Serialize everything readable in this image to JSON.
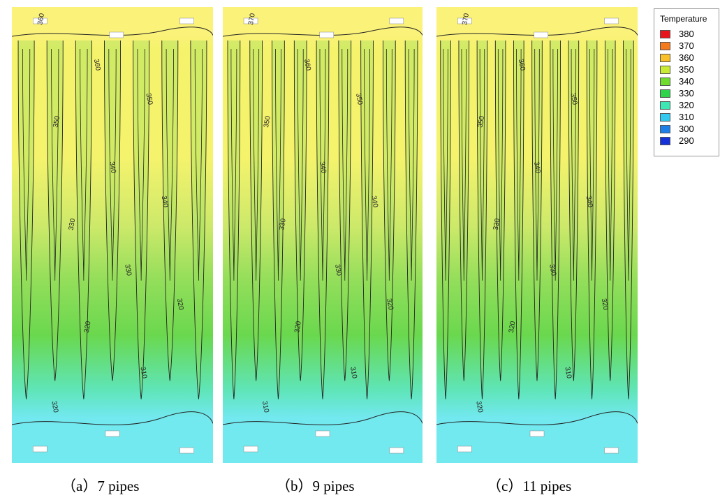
{
  "chart_data": [
    {
      "type": "heatmap",
      "title": "",
      "caption": "（a）7 pipes",
      "pipes": 7,
      "legend_title": "Temperature",
      "contour_levels": [
        310,
        320,
        330,
        340,
        350,
        360
      ],
      "contour_labels_sample": [
        "360",
        "360",
        "350",
        "350",
        "340",
        "340",
        "330",
        "330",
        "320",
        "320",
        "310",
        "320"
      ],
      "fields": {
        "top_band": 362,
        "finger_tip": 343,
        "between_fingers": 345,
        "bottom_band": 316
      }
    },
    {
      "type": "heatmap",
      "title": "",
      "caption": "（b）9 pipes",
      "pipes": 9,
      "legend_title": "Temperature",
      "contour_levels": [
        310,
        320,
        330,
        340,
        350,
        360,
        370
      ],
      "contour_labels_sample": [
        "370",
        "360",
        "350",
        "350",
        "340",
        "340",
        "330",
        "330",
        "320",
        "320",
        "310",
        "310"
      ],
      "fields": {
        "top_band": 363,
        "finger_tip": 342,
        "between_fingers": 345,
        "bottom_band": 315
      }
    },
    {
      "type": "heatmap",
      "title": "",
      "caption": "（c）11 pipes",
      "pipes": 11,
      "legend_title": "Temperature",
      "contour_levels": [
        310,
        320,
        330,
        340,
        350,
        360,
        370
      ],
      "contour_labels_sample": [
        "370",
        "360",
        "350",
        "350",
        "340",
        "340",
        "330",
        "330",
        "320",
        "320",
        "310",
        "320"
      ],
      "fields": {
        "top_band": 365,
        "finger_tip": 341,
        "between_fingers": 343,
        "bottom_band": 314
      }
    }
  ],
  "legend": {
    "title": "Temperature",
    "entries": [
      {
        "label": "380",
        "color": "#e8141c"
      },
      {
        "label": "370",
        "color": "#f57a1e"
      },
      {
        "label": "360",
        "color": "#f9c02a"
      },
      {
        "label": "350",
        "color": "#c9eb36"
      },
      {
        "label": "340",
        "color": "#6fdc2e"
      },
      {
        "label": "330",
        "color": "#2fd44a"
      },
      {
        "label": "320",
        "color": "#3de8b4"
      },
      {
        "label": "310",
        "color": "#33c9f0"
      },
      {
        "label": "300",
        "color": "#1e7fe8"
      },
      {
        "label": "290",
        "color": "#1432d8"
      }
    ]
  },
  "colors": {
    "top_band": "#fbf27a",
    "upper_yellow": "#f5f36c",
    "yellow_green": "#cde96a",
    "green": "#93de5a",
    "deep_green": "#6ad84e",
    "teal": "#5fe5b8",
    "cyan": "#72e8ef",
    "pipe_marker": "#ffffff",
    "contour_line": "#222222"
  }
}
